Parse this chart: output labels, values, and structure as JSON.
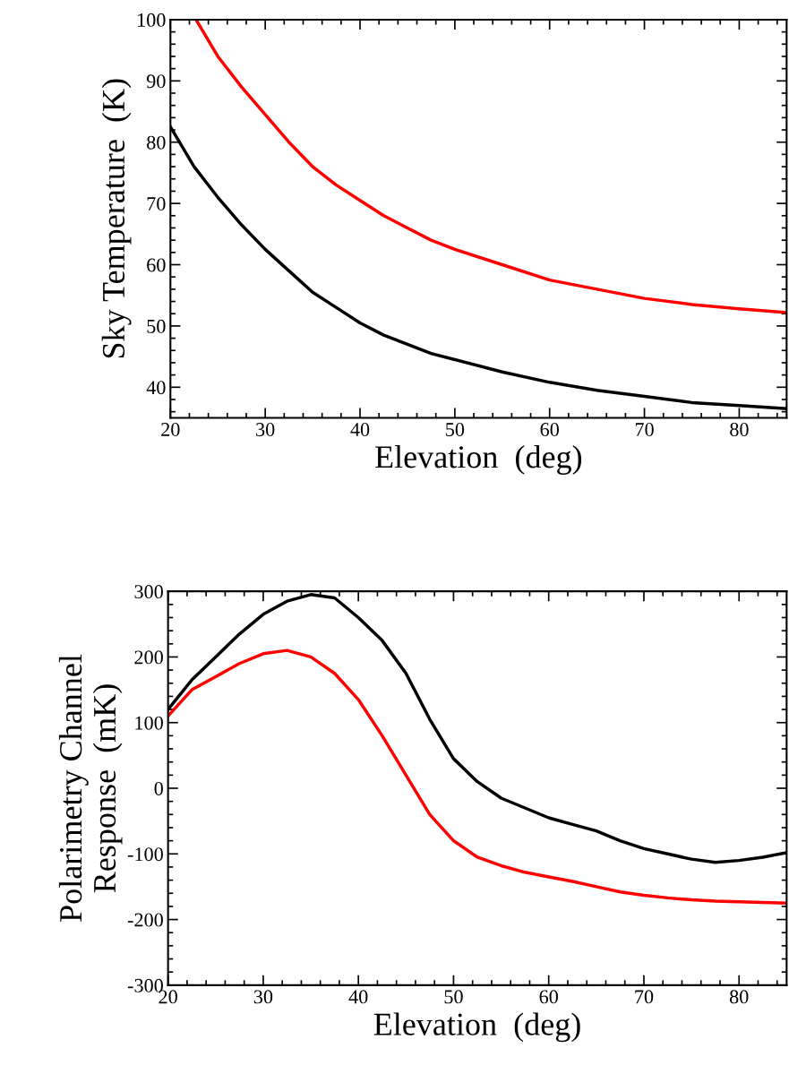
{
  "chart_data": [
    {
      "type": "line",
      "xlabel": "Elevation  (deg)",
      "ylabel": "Sky Temperature  (K)",
      "xlim": [
        20,
        85
      ],
      "ylim": [
        35,
        100
      ],
      "xticks": [
        20,
        30,
        40,
        50,
        60,
        70,
        80
      ],
      "yticks": [
        40,
        50,
        60,
        70,
        80,
        90,
        100
      ],
      "grid": false,
      "legend": false,
      "series": [
        {
          "color": "#ff0000",
          "x": [
            22.7,
            25,
            27.5,
            30,
            32.5,
            35,
            37.5,
            40,
            42.5,
            45,
            47.5,
            50,
            55,
            60,
            65,
            70,
            75,
            80,
            85
          ],
          "values": [
            100,
            94,
            89,
            84.5,
            80,
            76,
            73,
            70.5,
            68,
            66,
            64,
            62.5,
            60,
            57.5,
            56,
            54.5,
            53.5,
            52.8,
            52.2
          ]
        },
        {
          "color": "#000000",
          "x": [
            20,
            22.5,
            25,
            27.5,
            30,
            32.5,
            35,
            37.5,
            40,
            42.5,
            45,
            47.5,
            50,
            55,
            60,
            65,
            70,
            75,
            80,
            85
          ],
          "values": [
            82.5,
            76,
            71,
            66.5,
            62.5,
            59,
            55.5,
            53,
            50.5,
            48.5,
            47,
            45.5,
            44.5,
            42.5,
            40.8,
            39.5,
            38.5,
            37.5,
            37,
            36.5
          ]
        }
      ]
    },
    {
      "type": "line",
      "xlabel": "Elevation  (deg)",
      "ylabel": "Polarimetry Channel\nResponse  (mK)",
      "xlim": [
        20,
        85
      ],
      "ylim": [
        -300,
        300
      ],
      "xticks": [
        20,
        30,
        40,
        50,
        60,
        70,
        80
      ],
      "yticks": [
        -300,
        -200,
        -100,
        0,
        100,
        200,
        300
      ],
      "grid": false,
      "legend": false,
      "series": [
        {
          "color": "#000000",
          "x": [
            20,
            22.5,
            25,
            27.5,
            30,
            32.5,
            35,
            37.5,
            40,
            42.5,
            45,
            47.5,
            50,
            52.5,
            55,
            57.5,
            60,
            62.5,
            65,
            67.5,
            70,
            72.5,
            75,
            77.5,
            80,
            82.5,
            85
          ],
          "values": [
            120,
            165,
            200,
            235,
            265,
            285,
            295,
            290,
            260,
            225,
            175,
            105,
            45,
            10,
            -15,
            -30,
            -45,
            -55,
            -65,
            -80,
            -92,
            -100,
            -108,
            -113,
            -110,
            -105,
            -98
          ]
        },
        {
          "color": "#ff0000",
          "x": [
            20,
            22.5,
            25,
            27.5,
            30,
            32.5,
            35,
            37.5,
            40,
            42.5,
            45,
            47.5,
            50,
            52.5,
            55,
            57.5,
            60,
            62.5,
            65,
            67.5,
            70,
            72.5,
            75,
            77.5,
            80,
            85
          ],
          "values": [
            110,
            150,
            170,
            190,
            205,
            210,
            200,
            175,
            135,
            80,
            20,
            -40,
            -80,
            -105,
            -118,
            -128,
            -135,
            -142,
            -150,
            -158,
            -163,
            -167,
            -170,
            -172,
            -173,
            -175
          ]
        }
      ]
    }
  ]
}
